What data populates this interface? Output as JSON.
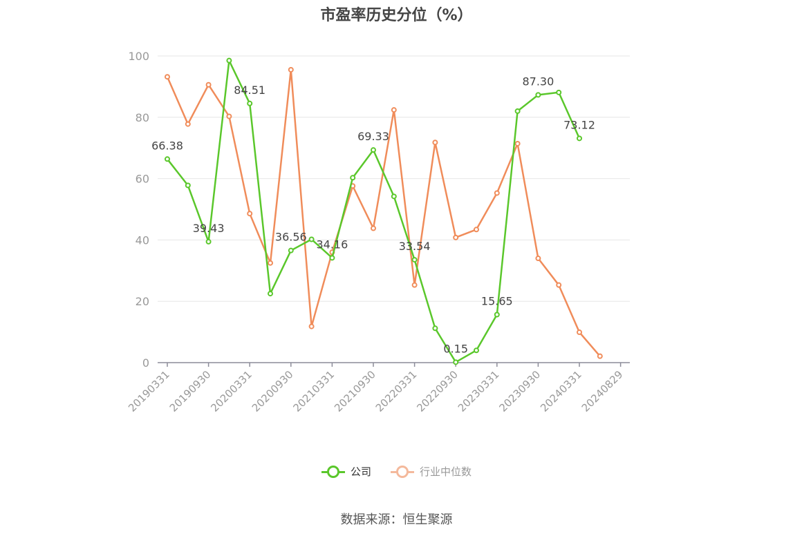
{
  "chart_data": {
    "type": "line",
    "title": "市盈率历史分位（%）",
    "x_tick_labels": [
      "20190331",
      "20190930",
      "20200331",
      "20200930",
      "20210331",
      "20210930",
      "20220331",
      "20220930",
      "20230331",
      "20230930",
      "20240331",
      "20240829"
    ],
    "y_ticks": [
      0,
      20,
      40,
      60,
      80,
      100
    ],
    "ylim": [
      0,
      100
    ],
    "grid": true,
    "legend_position": "bottom-center",
    "x_count": 22,
    "series": [
      {
        "name": "公司",
        "color": "#5ac72b",
        "values": [
          66.38,
          57.8,
          39.43,
          98.5,
          84.51,
          22.5,
          36.56,
          40.2,
          34.16,
          60.3,
          69.33,
          54.2,
          33.54,
          11.2,
          0.15,
          4.0,
          15.65,
          82.0,
          87.3,
          88.1,
          73.12,
          null
        ],
        "labels": [
          {
            "index": 0,
            "text": "66.38"
          },
          {
            "index": 2,
            "text": "39.43"
          },
          {
            "index": 4,
            "text": "84.51"
          },
          {
            "index": 6,
            "text": "36.56"
          },
          {
            "index": 8,
            "text": "34.16"
          },
          {
            "index": 10,
            "text": "69.33"
          },
          {
            "index": 12,
            "text": "33.54"
          },
          {
            "index": 14,
            "text": "0.15"
          },
          {
            "index": 16,
            "text": "15.65"
          },
          {
            "index": 18,
            "text": "87.30"
          },
          {
            "index": 20,
            "text": "73.12"
          }
        ]
      },
      {
        "name": "行业中位数",
        "color": "#f08c5a",
        "values": [
          93.2,
          77.8,
          90.6,
          80.3,
          48.6,
          32.5,
          95.5,
          11.8,
          36.0,
          57.6,
          43.8,
          82.4,
          25.3,
          71.8,
          40.8,
          43.4,
          55.3,
          71.4,
          34.0,
          25.3,
          9.9,
          2.1
        ],
        "labels": []
      }
    ]
  },
  "legend": {
    "items": [
      {
        "label": "公司",
        "color": "#5ac72b",
        "text_color": "#333333"
      },
      {
        "label": "行业中位数",
        "color": "#f4b99c",
        "text_color": "#999999"
      }
    ]
  },
  "source": "数据来源：恒生聚源"
}
